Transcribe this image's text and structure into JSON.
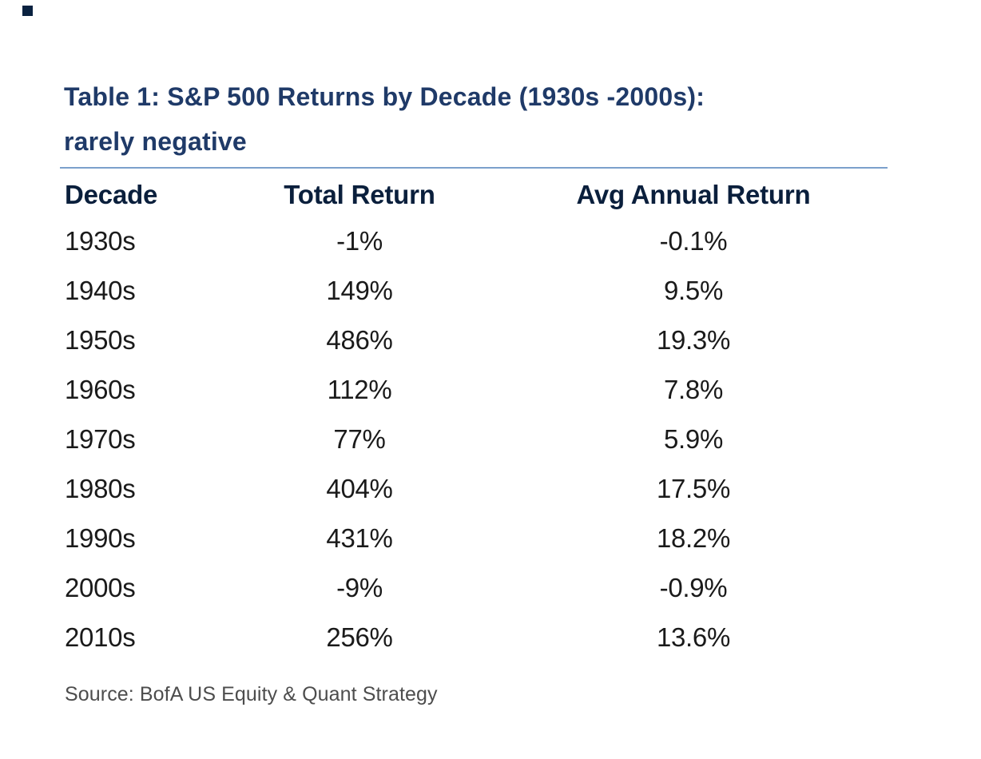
{
  "title": {
    "line1": "Table 1: S&P 500 Returns by Decade (1930s -2000s):",
    "line2": "rarely negative"
  },
  "table": {
    "headers": [
      "Decade",
      "Total Return",
      "Avg Annual Return"
    ],
    "rows": [
      [
        "1930s",
        "-1%",
        "-0.1%"
      ],
      [
        "1940s",
        "149%",
        "9.5%"
      ],
      [
        "1950s",
        "486%",
        "19.3%"
      ],
      [
        "1960s",
        "112%",
        "7.8%"
      ],
      [
        "1970s",
        "77%",
        "5.9%"
      ],
      [
        "1980s",
        "404%",
        "17.5%"
      ],
      [
        "1990s",
        "431%",
        "18.2%"
      ],
      [
        "2000s",
        "-9%",
        "-0.9%"
      ],
      [
        "2010s",
        "256%",
        "13.6%"
      ]
    ]
  },
  "source": "Source: BofA US Equity & Quant Strategy",
  "colors": {
    "title_navy": "#1f3a68",
    "header_navy": "#0a1f3c",
    "divider_blue": "#7ba0cc",
    "data_text": "#1a1a1a",
    "source_gray": "#4d4d4d",
    "corner_mark": "#0a2240"
  },
  "chart_data": {
    "type": "table",
    "title": "Table 1: S&P 500 Returns by Decade (1930s -2000s): rarely negative",
    "columns": [
      "Decade",
      "Total Return",
      "Avg Annual Return"
    ],
    "rows": [
      {
        "decade": "1930s",
        "total_return_pct": -1,
        "avg_annual_return_pct": -0.1
      },
      {
        "decade": "1940s",
        "total_return_pct": 149,
        "avg_annual_return_pct": 9.5
      },
      {
        "decade": "1950s",
        "total_return_pct": 486,
        "avg_annual_return_pct": 19.3
      },
      {
        "decade": "1960s",
        "total_return_pct": 112,
        "avg_annual_return_pct": 7.8
      },
      {
        "decade": "1970s",
        "total_return_pct": 77,
        "avg_annual_return_pct": 5.9
      },
      {
        "decade": "1980s",
        "total_return_pct": 404,
        "avg_annual_return_pct": 17.5
      },
      {
        "decade": "1990s",
        "total_return_pct": 431,
        "avg_annual_return_pct": 18.2
      },
      {
        "decade": "2000s",
        "total_return_pct": -9,
        "avg_annual_return_pct": -0.9
      },
      {
        "decade": "2010s",
        "total_return_pct": 256,
        "avg_annual_return_pct": 13.6
      }
    ],
    "source": "Source: BofA US Equity & Quant Strategy"
  }
}
